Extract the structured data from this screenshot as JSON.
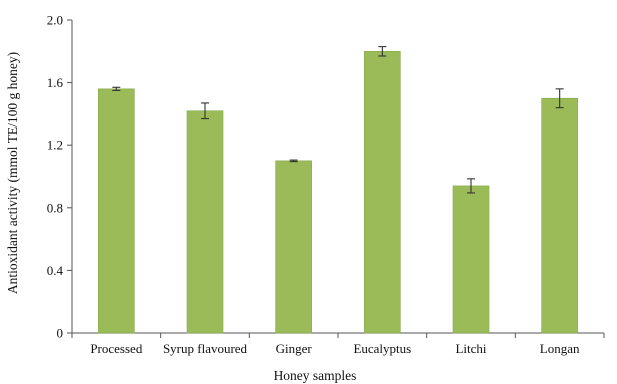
{
  "chart_data": {
    "type": "bar",
    "categories": [
      "Processed",
      "Syrup flavoured",
      "Ginger",
      "Eucalyptus",
      "Litchi",
      "Longan"
    ],
    "values": [
      1.56,
      1.42,
      1.1,
      1.8,
      0.94,
      1.5
    ],
    "errors": [
      0.01,
      0.05,
      0.005,
      0.03,
      0.045,
      0.06
    ],
    "xlabel": "Honey samples",
    "ylabel": "Antioxidant activity (mmol TE/100 g honey)",
    "ylim": [
      0,
      2.0
    ],
    "yticks": [
      0,
      0.4,
      0.8,
      1.2,
      1.6,
      2.0
    ],
    "ytick_labels": [
      "0",
      "0.4",
      "0.8",
      "1.2",
      "1.6",
      "2.0"
    ],
    "grid": false,
    "bar_color": "#9bbb59"
  }
}
